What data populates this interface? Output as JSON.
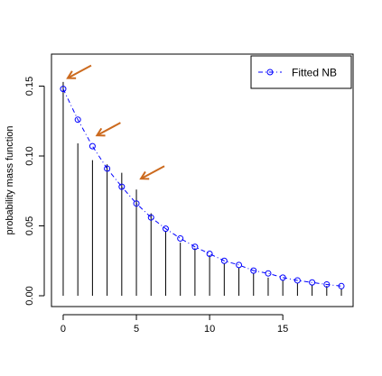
{
  "chart_data": {
    "type": "line",
    "title": "",
    "xlabel": "",
    "ylabel": "probability mass function",
    "xlim": [
      -0.8,
      19.8
    ],
    "ylim": [
      0,
      0.16
    ],
    "x_ticks": [
      0,
      5,
      10,
      15
    ],
    "x_tick_labels": [
      "0",
      "5",
      "10",
      "15"
    ],
    "y_ticks": [
      0.0,
      0.05,
      0.1,
      0.15
    ],
    "y_tick_labels": [
      "0.00",
      "0.05",
      "0.10",
      "0.15"
    ],
    "grid": false,
    "legend_position": "top-right",
    "observed": {
      "style": "vertical lines",
      "color": "#000000",
      "x": [
        0,
        1,
        2,
        3,
        4,
        5,
        6,
        7,
        8,
        9,
        10,
        11,
        12,
        13,
        14,
        15,
        16,
        17,
        18,
        19
      ],
      "values": [
        0.153,
        0.109,
        0.097,
        0.094,
        0.088,
        0.076,
        0.059,
        0.046,
        0.038,
        0.034,
        0.029,
        0.023,
        0.02,
        0.016,
        0.013,
        0.011,
        0.009,
        0.008,
        0.007,
        0.005
      ]
    },
    "series": [
      {
        "name": "Fitted NB",
        "color": "#0000ff",
        "style": "dash-dot line with open circles",
        "x": [
          0,
          1,
          2,
          3,
          4,
          5,
          6,
          7,
          8,
          9,
          10,
          11,
          12,
          13,
          14,
          15,
          16,
          17,
          18,
          19
        ],
        "values": [
          0.148,
          0.126,
          0.107,
          0.091,
          0.078,
          0.066,
          0.056,
          0.048,
          0.041,
          0.035,
          0.03,
          0.025,
          0.022,
          0.018,
          0.016,
          0.013,
          0.011,
          0.0095,
          0.0081,
          0.0069
        ]
      }
    ],
    "annotations": [
      {
        "type": "arrow",
        "color": "#cc6a1e",
        "points_to": [
          0,
          0.148
        ]
      },
      {
        "type": "arrow",
        "color": "#cc6a1e",
        "points_to": [
          2,
          0.107
        ]
      },
      {
        "type": "arrow",
        "color": "#cc6a1e",
        "points_to": [
          5,
          0.076
        ]
      }
    ]
  }
}
